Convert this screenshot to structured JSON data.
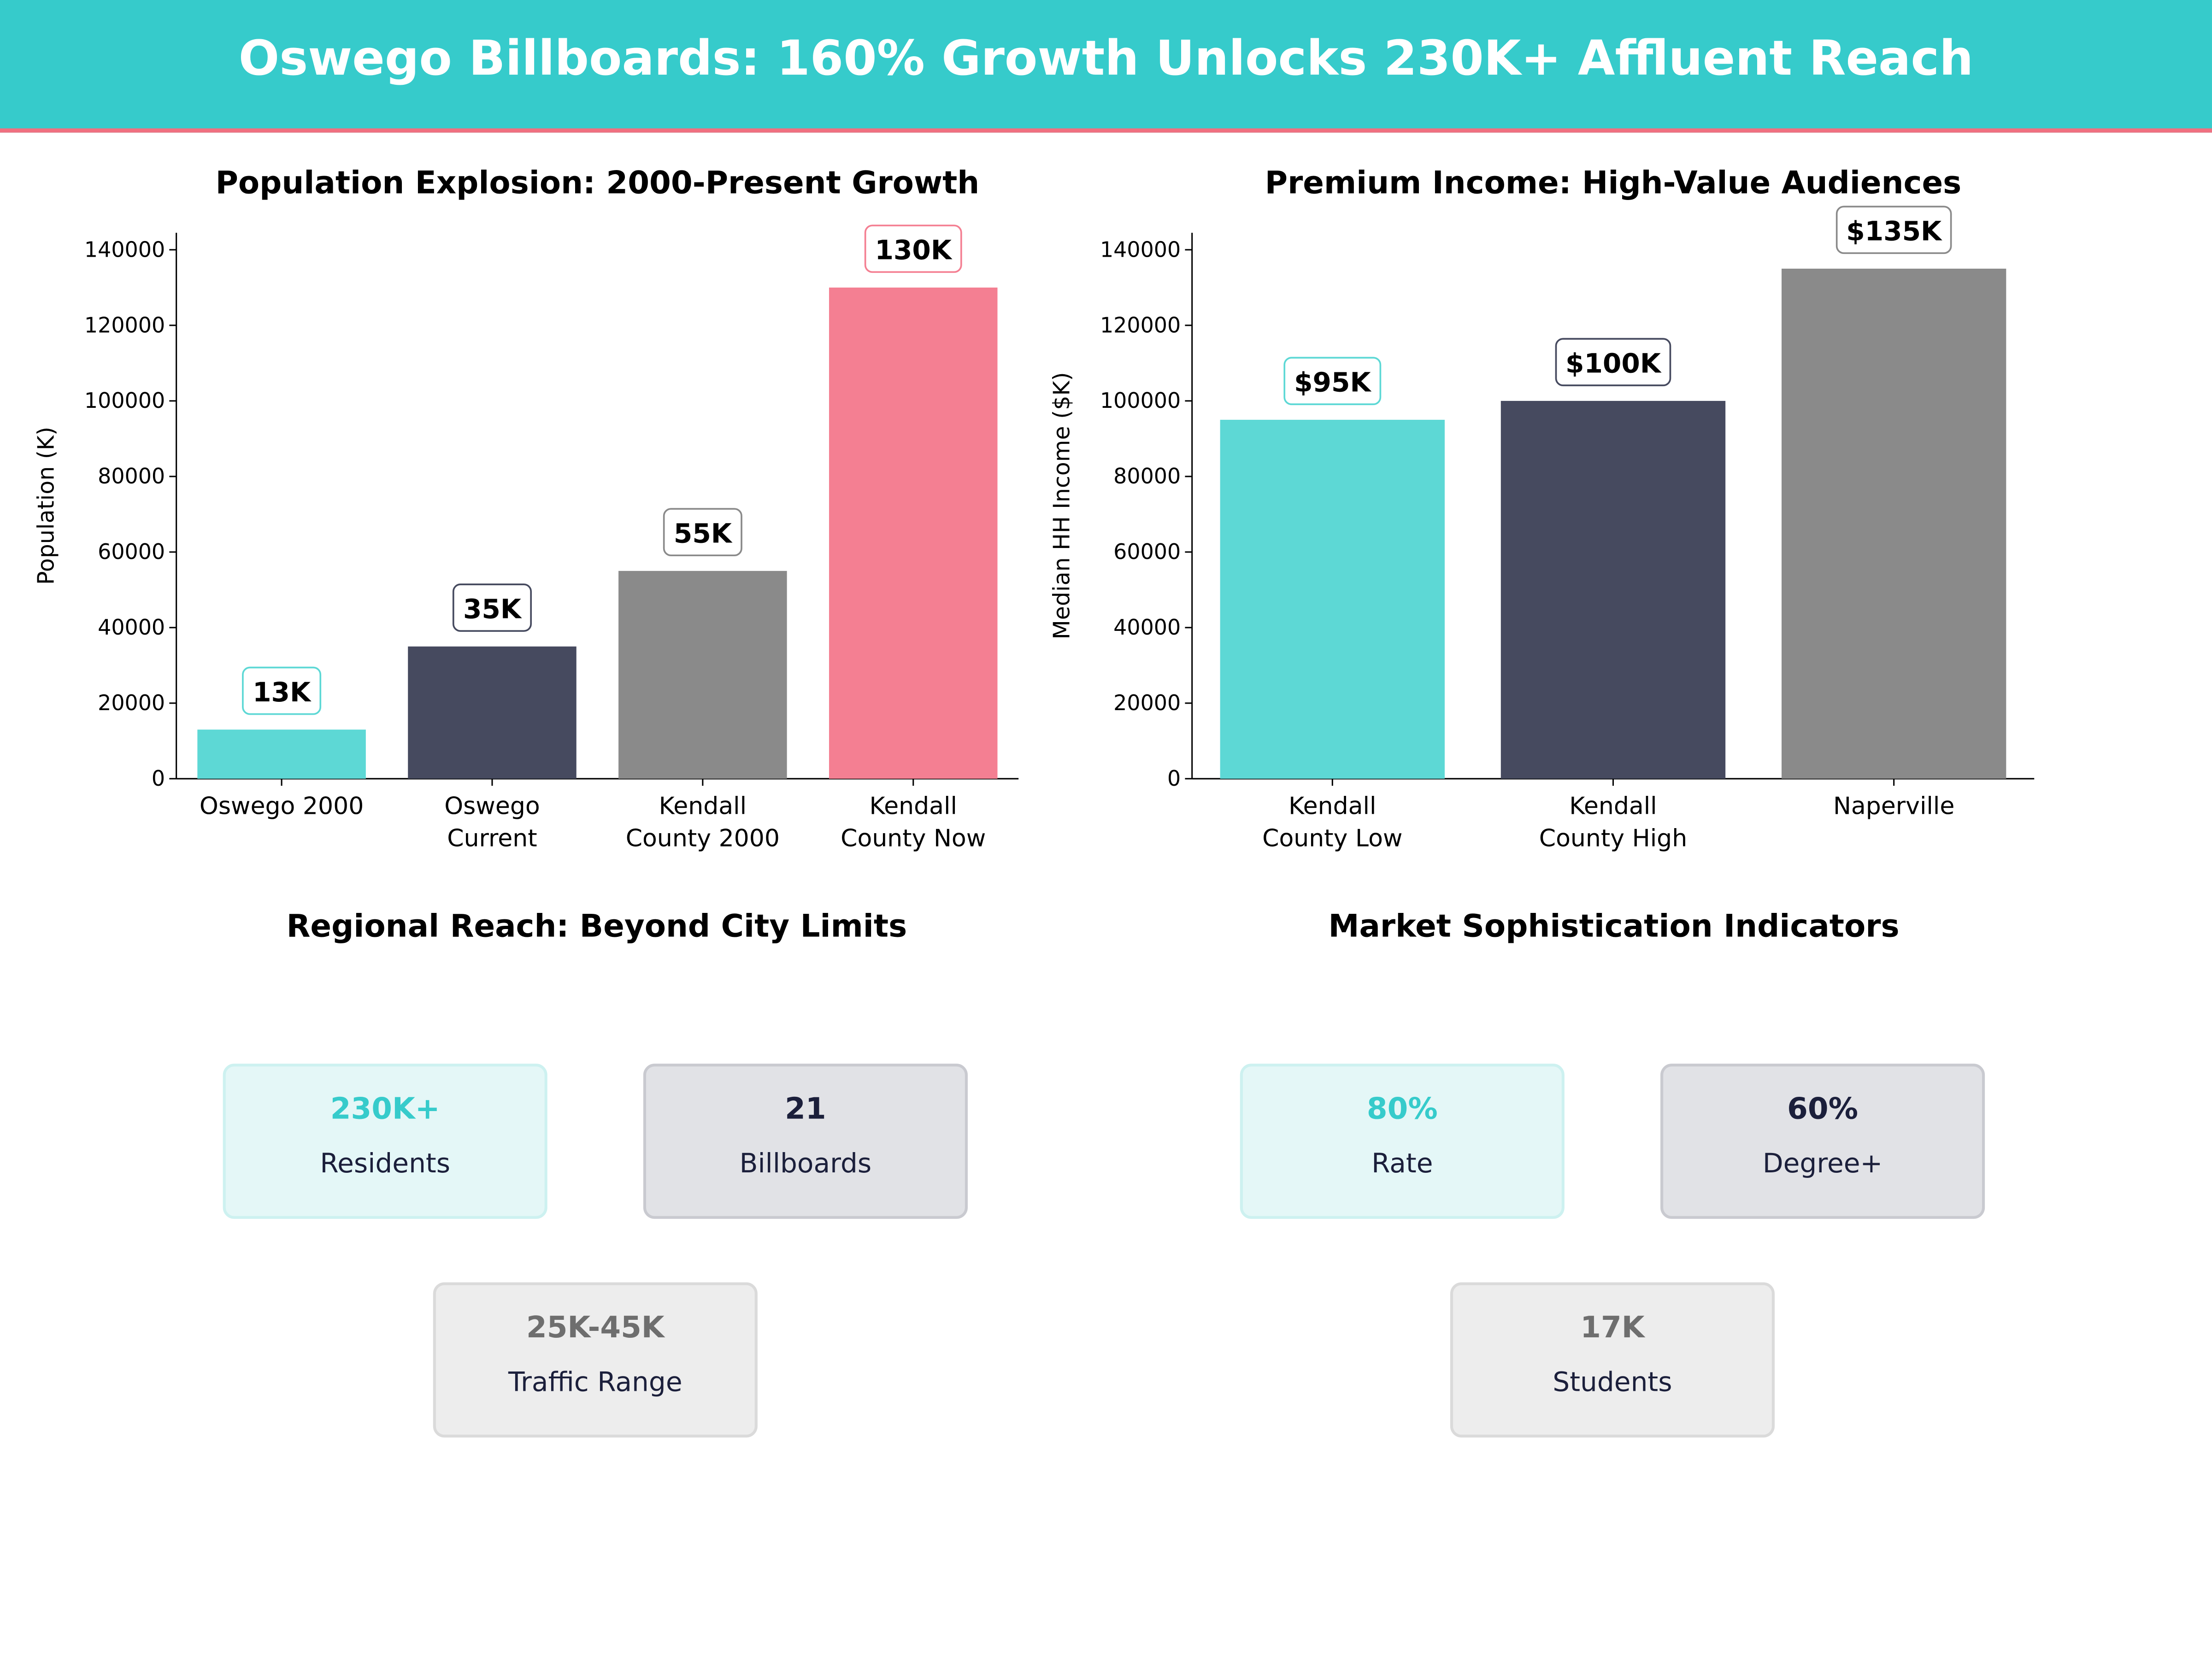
{
  "title": "Oswego Billboards: 160% Growth Unlocks 230K+ Affluent Reach",
  "colors": {
    "header": "#36CBCB",
    "accent_line": "#F07080",
    "teal": "#5DD8D5",
    "navy": "#464A5F",
    "gray": "#8A8A8A",
    "pink": "#F47F92"
  },
  "chart_data": [
    {
      "type": "bar",
      "title": "Population Explosion: 2000-Present Growth",
      "xlabel": "",
      "ylabel": "Population (K)",
      "categories": [
        "Oswego 2000",
        "Oswego\nCurrent",
        "Kendall\nCounty 2000",
        "Kendall\nCounty Now"
      ],
      "values": [
        13000,
        35000,
        55000,
        130000
      ],
      "data_labels": [
        "13K",
        "35K",
        "55K",
        "130K"
      ],
      "bar_colors": [
        "#5DD8D5",
        "#464A5F",
        "#8A8A8A",
        "#F47F92"
      ],
      "yticks": [
        0,
        20000,
        40000,
        60000,
        80000,
        100000,
        120000,
        140000
      ],
      "ylim": [
        0,
        144500
      ],
      "grid": false
    },
    {
      "type": "bar",
      "title": "Premium Income: High-Value Audiences",
      "xlabel": "",
      "ylabel": "Median HH Income ($K)",
      "categories": [
        "Kendall\nCounty Low",
        "Kendall\nCounty High",
        "Naperville"
      ],
      "values": [
        95000,
        100000,
        135000
      ],
      "data_labels": [
        "$95K",
        "$100K",
        "$135K"
      ],
      "bar_colors": [
        "#5DD8D5",
        "#464A5F",
        "#8A8A8A"
      ],
      "yticks": [
        0,
        20000,
        40000,
        60000,
        80000,
        100000,
        120000,
        140000
      ],
      "ylim": [
        0,
        144500
      ],
      "grid": false
    }
  ],
  "regional": {
    "title": "Regional Reach: Beyond City Limits",
    "cards": [
      {
        "value": "230K+",
        "label": "Residents"
      },
      {
        "value": "21",
        "label": "Billboards"
      },
      {
        "value": "25K-45K",
        "label": "Traffic Range"
      }
    ]
  },
  "market": {
    "title": "Market Sophistication Indicators",
    "cards": [
      {
        "value": "80%",
        "label": "Rate"
      },
      {
        "value": "60%",
        "label": "Degree+"
      },
      {
        "value": "17K",
        "label": "Students"
      }
    ]
  }
}
